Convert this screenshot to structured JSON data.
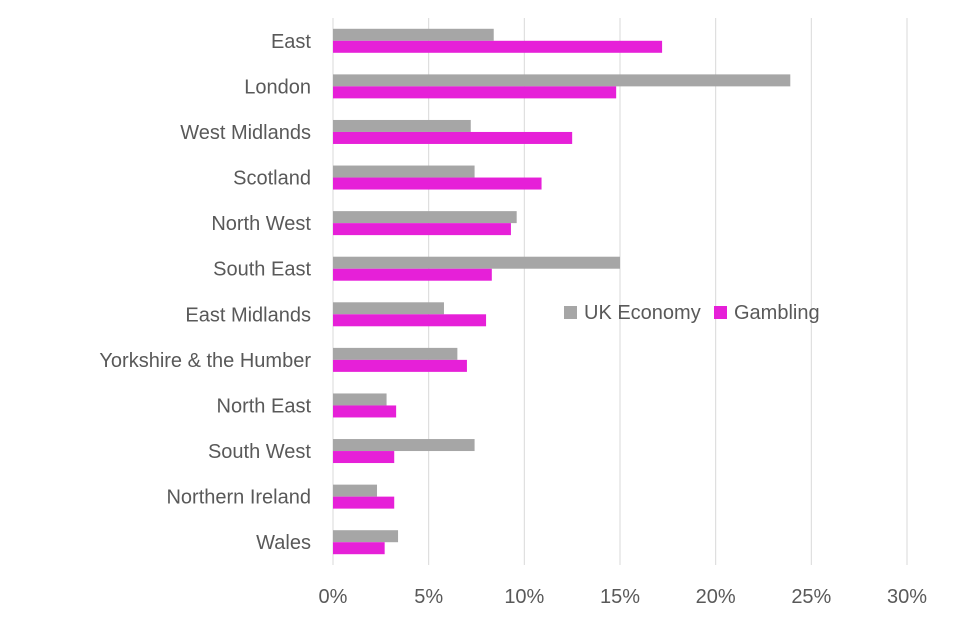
{
  "chart_data": {
    "type": "bar",
    "orientation": "horizontal",
    "title": "",
    "xlabel": "",
    "ylabel": "",
    "categories": [
      "East",
      "London",
      "West Midlands",
      "Scotland",
      "North West",
      "South East",
      "East Midlands",
      "Yorkshire & the Humber",
      "North East",
      "South West",
      "Northern Ireland",
      "Wales"
    ],
    "series": [
      {
        "name": "UK Economy",
        "color": "#a6a6a6",
        "values": [
          8.4,
          23.9,
          7.2,
          7.4,
          9.6,
          15.0,
          5.8,
          6.5,
          2.8,
          7.4,
          2.3,
          3.4
        ]
      },
      {
        "name": "Gambling",
        "color": "#e620d8",
        "values": [
          17.2,
          14.8,
          12.5,
          10.9,
          9.3,
          8.3,
          8.0,
          7.0,
          3.3,
          3.2,
          3.2,
          2.7
        ]
      }
    ],
    "xlim": [
      0,
      30
    ],
    "xticks": [
      "0%",
      "5%",
      "10%",
      "15%",
      "20%",
      "25%",
      "30%"
    ],
    "grid": true,
    "legend_position": "right-center"
  }
}
